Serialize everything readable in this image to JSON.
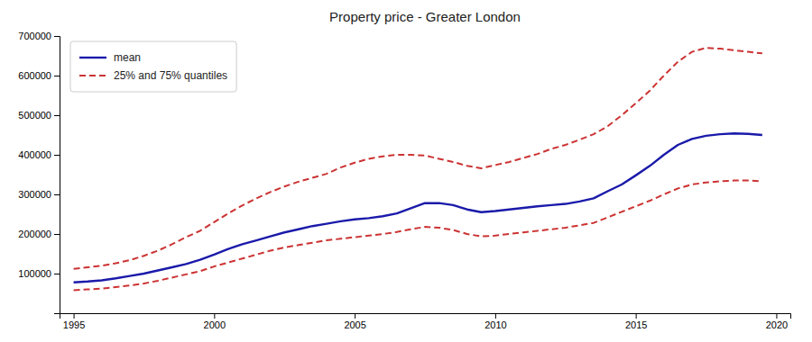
{
  "chart_data": {
    "type": "line",
    "title": "Property price - Greater London",
    "x": [
      1995,
      1995.5,
      1996,
      1996.5,
      1997,
      1997.5,
      1998,
      1998.5,
      1999,
      1999.5,
      2000,
      2000.5,
      2001,
      2001.5,
      2002,
      2002.5,
      2003,
      2003.5,
      2004,
      2004.5,
      2005,
      2005.5,
      2006,
      2006.5,
      2007,
      2007.5,
      2008,
      2008.5,
      2009,
      2009.5,
      2010,
      2010.5,
      2011,
      2011.5,
      2012,
      2012.5,
      2013,
      2013.5,
      2014,
      2014.5,
      2015,
      2015.5,
      2016,
      2016.5,
      2017,
      2017.5,
      2018,
      2018.5,
      2019,
      2019.5
    ],
    "series": [
      {
        "name": "25% and 75% quantiles",
        "color": "#cc3333",
        "line_style": "dashed",
        "values": [
          112000,
          116000,
          120000,
          126000,
          134000,
          145000,
          158000,
          174000,
          192000,
          208000,
          230000,
          252000,
          272000,
          290000,
          306000,
          320000,
          332000,
          342000,
          352000,
          368000,
          380000,
          390000,
          396000,
          400000,
          400000,
          398000,
          390000,
          382000,
          372000,
          366000,
          374000,
          382000,
          392000,
          402000,
          415000,
          425000,
          438000,
          452000,
          472000,
          500000,
          530000,
          562000,
          600000,
          635000,
          660000,
          670000,
          668000,
          664000,
          660000,
          656000
        ]
      },
      {
        "color": "#cc3333",
        "line_style": "dashed",
        "values": [
          58000,
          60000,
          62000,
          66000,
          70000,
          75000,
          82000,
          90000,
          98000,
          106000,
          118000,
          128000,
          138000,
          148000,
          158000,
          166000,
          172000,
          178000,
          184000,
          188000,
          192000,
          196000,
          200000,
          205000,
          212000,
          218000,
          216000,
          210000,
          200000,
          194000,
          196000,
          200000,
          204000,
          208000,
          212000,
          216000,
          222000,
          228000,
          242000,
          256000,
          270000,
          284000,
          300000,
          315000,
          325000,
          330000,
          333000,
          335000,
          335000,
          333000
        ]
      },
      {
        "name": "mean",
        "color": "#1a1aaa",
        "line_style": "solid",
        "values": [
          78000,
          80000,
          83000,
          88000,
          94000,
          100000,
          108000,
          116000,
          124000,
          135000,
          148000,
          162000,
          174000,
          184000,
          194000,
          204000,
          212000,
          220000,
          226000,
          232000,
          237000,
          240000,
          245000,
          252000,
          265000,
          278000,
          278000,
          273000,
          262000,
          255000,
          258000,
          262000,
          266000,
          270000,
          273000,
          276000,
          282000,
          290000,
          308000,
          325000,
          348000,
          372000,
          400000,
          425000,
          440000,
          448000,
          452000,
          454000,
          453000,
          450000
        ]
      }
    ],
    "xlim": [
      1994.5,
      2020.5
    ],
    "ylim": [
      0,
      700000
    ],
    "xticks": [
      1995,
      2000,
      2005,
      2010,
      2015,
      2020
    ],
    "yticks": [
      100000,
      200000,
      300000,
      400000,
      500000,
      600000,
      700000
    ],
    "grid": false,
    "legend": "upper left"
  }
}
